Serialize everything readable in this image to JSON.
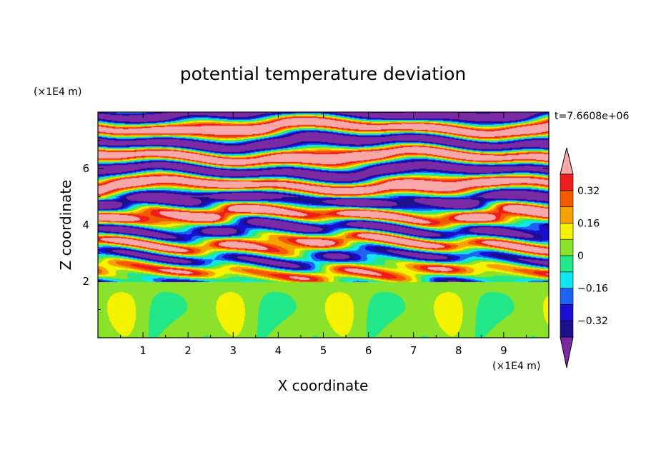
{
  "chart_data": {
    "type": "heatmap",
    "title": "potential temperature deviation",
    "xlabel": "X coordinate",
    "ylabel": "Z coordinate",
    "x_unit": "(×1E4 m)",
    "y_unit": "(×1E4 m)",
    "time_label": "t=7.6608e+06",
    "xlim": [
      0,
      10
    ],
    "ylim": [
      0,
      8
    ],
    "x_ticks": [
      "1",
      "2",
      "3",
      "4",
      "5",
      "6",
      "7",
      "8",
      "9"
    ],
    "y_ticks": [
      "2",
      "4",
      "6"
    ],
    "colorbar": {
      "tick_labels": [
        "0.32",
        "0.16",
        "0",
        "-0.16",
        "-0.32"
      ],
      "tick_values": [
        0.32,
        0.16,
        0,
        -0.16,
        -0.32
      ],
      "levels": [
        -0.4,
        -0.32,
        -0.24,
        -0.16,
        -0.08,
        0,
        0.08,
        0.16,
        0.24,
        0.32,
        0.4
      ],
      "colors": [
        "#7b2aa6",
        "#1c0f8c",
        "#1a0ed0",
        "#1e62f2",
        "#10e6f2",
        "#22e88a",
        "#8ae22a",
        "#f4f200",
        "#f7a100",
        "#f35a00",
        "#ee1c1c",
        "#f8a8a8"
      ],
      "extend": "both"
    }
  }
}
